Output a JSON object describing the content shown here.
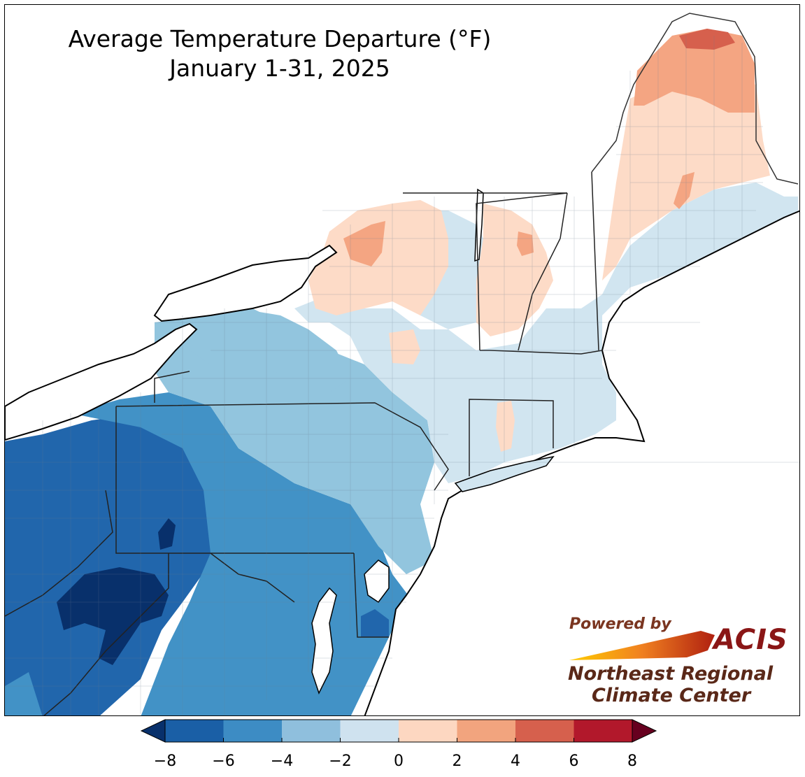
{
  "title": {
    "line1": "Average Temperature Departure (°F)",
    "line2": "January 1-31, 2025"
  },
  "legend": {
    "ticks": [
      "−8",
      "−6",
      "−4",
      "−2",
      "0",
      "2",
      "4",
      "6",
      "8"
    ],
    "tick_values": [
      -8,
      -6,
      -4,
      -2,
      0,
      2,
      4,
      6,
      8
    ],
    "colors": [
      "#1a5fa6",
      "#3d8cc4",
      "#8fbfdd",
      "#cfe2ef",
      "#fdd7c1",
      "#f2a47e",
      "#d6604d",
      "#b2182b"
    ],
    "under_color": "#08306b",
    "over_color": "#67001f",
    "extend": "both"
  },
  "logo": {
    "powered_by": "Powered by",
    "acis": "ACIS",
    "org_line1": "Northeast Regional",
    "org_line2": "Climate Center"
  },
  "map": {
    "region": "Northeast United States",
    "palette": {
      "land_dark": "#08306b",
      "land_neg6": "#2166ac",
      "land_neg4": "#4292c6",
      "land_neg2": "#92c5de",
      "land_neg0": "#d1e5f0",
      "land_pos0": "#fddbc7",
      "land_pos2": "#f4a582",
      "land_pos4": "#d6604d",
      "water": "#ffffff",
      "border": "#000000"
    }
  }
}
